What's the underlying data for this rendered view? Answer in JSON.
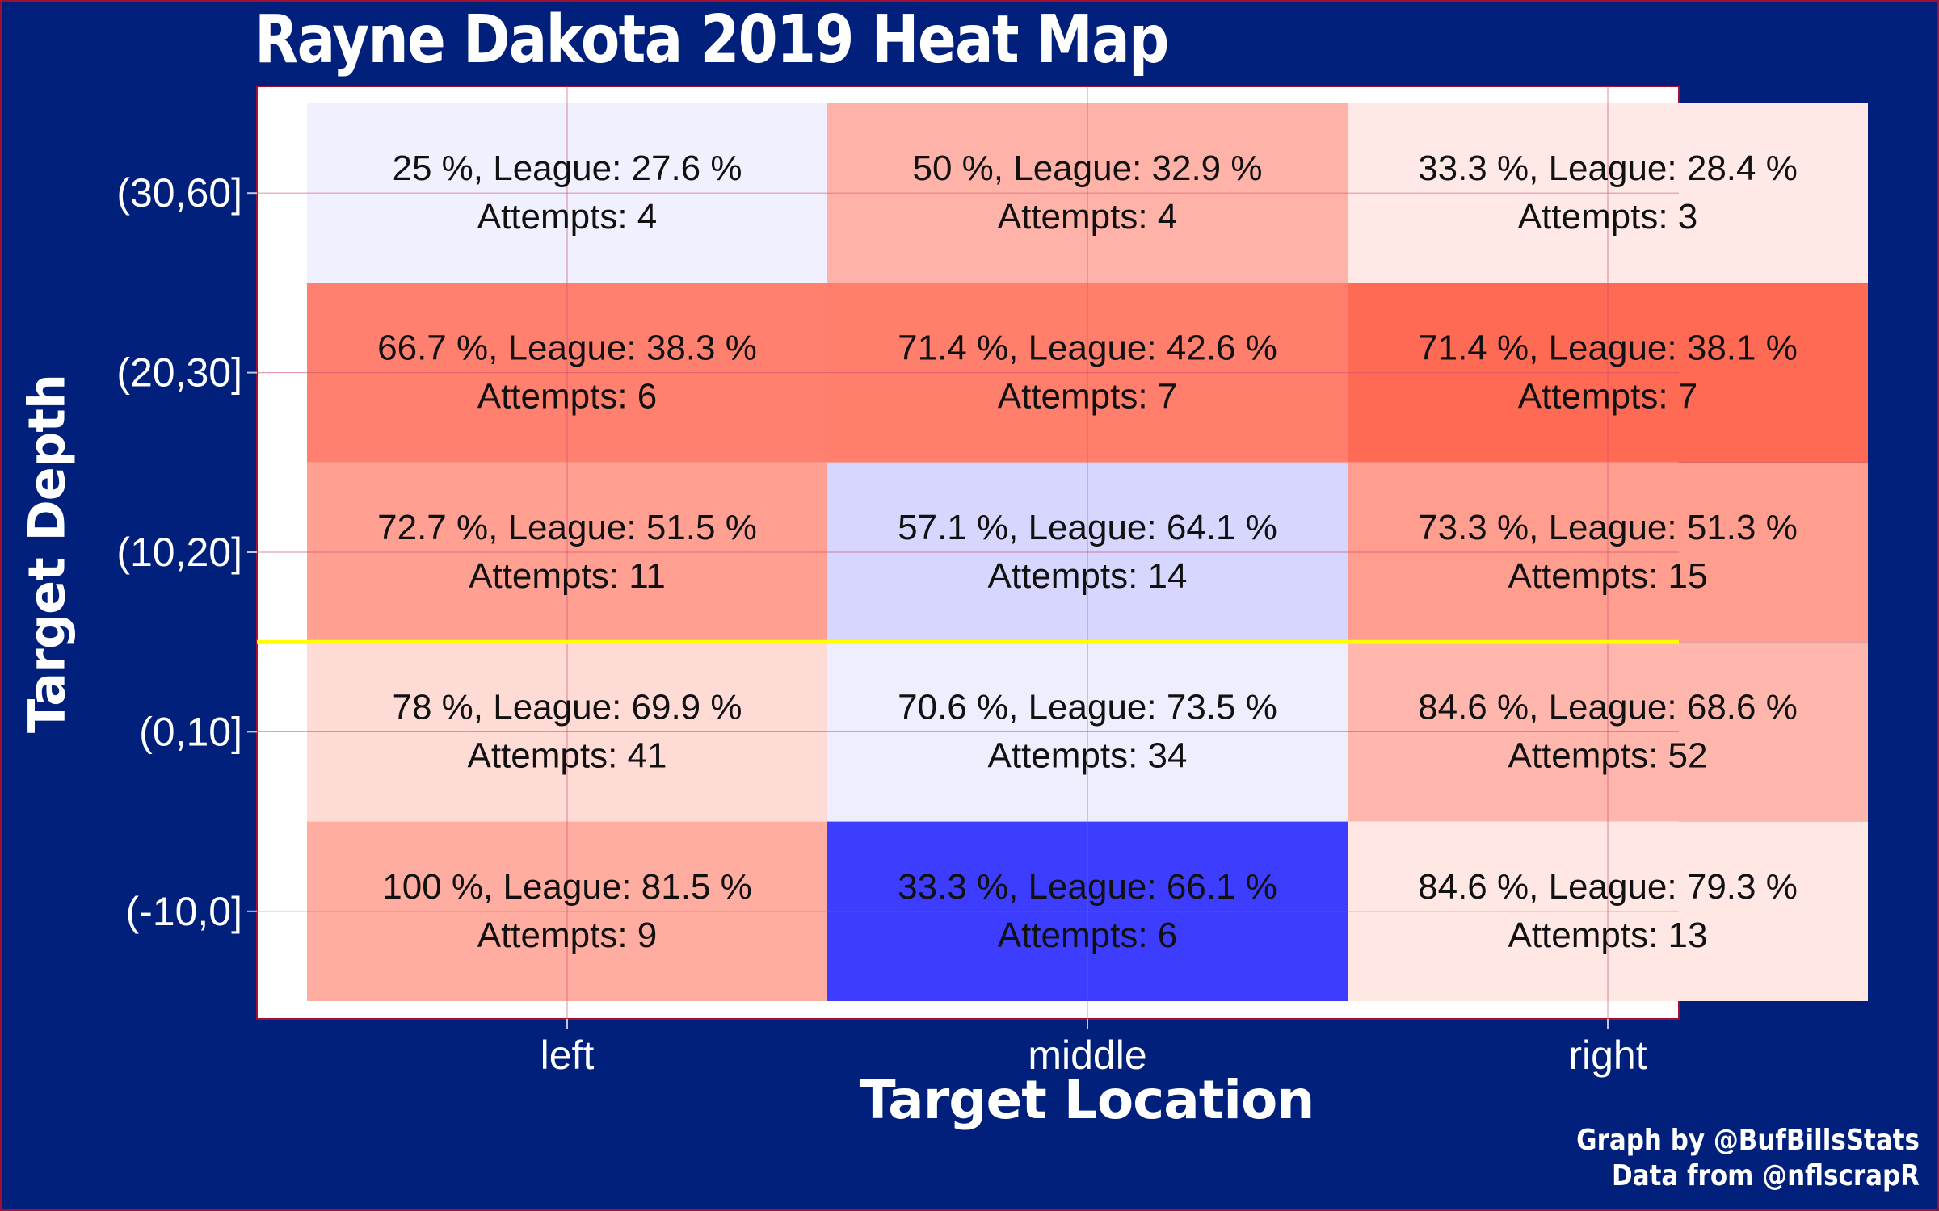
{
  "title": "Rayne Dakota 2019 Heat Map",
  "credits": [
    "Graph by @BufBillsStats",
    "Data from @nflscrapR"
  ],
  "colors": {
    "background": "#00207b",
    "panel": "#ffffff",
    "grid": "#d05070",
    "cutoff_line": "#ffff00",
    "low": "#3a3aff",
    "mid": "#ffffff",
    "high": "#ff6a55"
  },
  "chart_data": {
    "type": "heatmap",
    "title": "Rayne Dakota 2019 Heat Map",
    "xlabel": "Target Location",
    "ylabel": "Target Depth",
    "x_categories": [
      "left",
      "middle",
      "right"
    ],
    "y_categories": [
      "(-10,0]",
      "(0,10]",
      "(10,20]",
      "(20,30]",
      "(30,60]"
    ],
    "reference_line": {
      "type": "horizontal",
      "between": [
        "(0,10]",
        "(10,20]"
      ],
      "color": "#ffff00"
    },
    "grid": true,
    "legend": "none",
    "cells": [
      {
        "x": "left",
        "y": "(30,60]",
        "pct": "25",
        "league": "27.6",
        "attempts": 4,
        "diff": -2.6,
        "label": "25 %, League: 27.6 %",
        "attempts_label": "Attempts: 4"
      },
      {
        "x": "middle",
        "y": "(30,60]",
        "pct": "50",
        "league": "32.9",
        "attempts": 4,
        "diff": 17.1,
        "label": "50 %, League: 32.9 %",
        "attempts_label": "Attempts: 4"
      },
      {
        "x": "right",
        "y": "(30,60]",
        "pct": "33.3",
        "league": "28.4",
        "attempts": 3,
        "diff": 4.9,
        "label": "33.3 %, League: 28.4 %",
        "attempts_label": "Attempts: 3"
      },
      {
        "x": "left",
        "y": "(20,30]",
        "pct": "66.7",
        "league": "38.3",
        "attempts": 6,
        "diff": 28.4,
        "label": "66.7 %, League: 38.3 %",
        "attempts_label": "Attempts: 6"
      },
      {
        "x": "middle",
        "y": "(20,30]",
        "pct": "71.4",
        "league": "42.6",
        "attempts": 7,
        "diff": 28.8,
        "label": "71.4 %, League: 42.6 %",
        "attempts_label": "Attempts: 7"
      },
      {
        "x": "right",
        "y": "(20,30]",
        "pct": "71.4",
        "league": "38.1",
        "attempts": 7,
        "diff": 33.3,
        "label": "71.4 %, League: 38.1 %",
        "attempts_label": "Attempts: 7"
      },
      {
        "x": "left",
        "y": "(10,20]",
        "pct": "72.7",
        "league": "51.5",
        "attempts": 11,
        "diff": 21.2,
        "label": "72.7 %, League: 51.5 %",
        "attempts_label": "Attempts: 11"
      },
      {
        "x": "middle",
        "y": "(10,20]",
        "pct": "57.1",
        "league": "64.1",
        "attempts": 14,
        "diff": -7.0,
        "label": "57.1 %, League: 64.1 %",
        "attempts_label": "Attempts: 14"
      },
      {
        "x": "right",
        "y": "(10,20]",
        "pct": "73.3",
        "league": "51.3",
        "attempts": 15,
        "diff": 22.0,
        "label": "73.3 %, League: 51.3 %",
        "attempts_label": "Attempts: 15"
      },
      {
        "x": "left",
        "y": "(0,10]",
        "pct": "78",
        "league": "69.9",
        "attempts": 41,
        "diff": 8.1,
        "label": "78 %, League: 69.9 %",
        "attempts_label": "Attempts: 41"
      },
      {
        "x": "middle",
        "y": "(0,10]",
        "pct": "70.6",
        "league": "73.5",
        "attempts": 34,
        "diff": -2.9,
        "label": "70.6 %, League: 73.5 %",
        "attempts_label": "Attempts: 34"
      },
      {
        "x": "right",
        "y": "(0,10]",
        "pct": "84.6",
        "league": "68.6",
        "attempts": 52,
        "diff": 16.0,
        "label": "84.6 %, League: 68.6 %",
        "attempts_label": "Attempts: 52"
      },
      {
        "x": "left",
        "y": "(-10,0]",
        "pct": "100",
        "league": "81.5",
        "attempts": 9,
        "diff": 18.5,
        "label": "100 %, League: 81.5 %",
        "attempts_label": "Attempts: 9"
      },
      {
        "x": "middle",
        "y": "(-10,0]",
        "pct": "33.3",
        "league": "66.1",
        "attempts": 6,
        "diff": -32.8,
        "label": "33.3 %, League: 66.1 %",
        "attempts_label": "Attempts: 6"
      },
      {
        "x": "right",
        "y": "(-10,0]",
        "pct": "84.6",
        "league": "79.3",
        "attempts": 13,
        "diff": 5.3,
        "label": "84.6 %, League: 79.3 %",
        "attempts_label": "Attempts: 13"
      }
    ]
  }
}
